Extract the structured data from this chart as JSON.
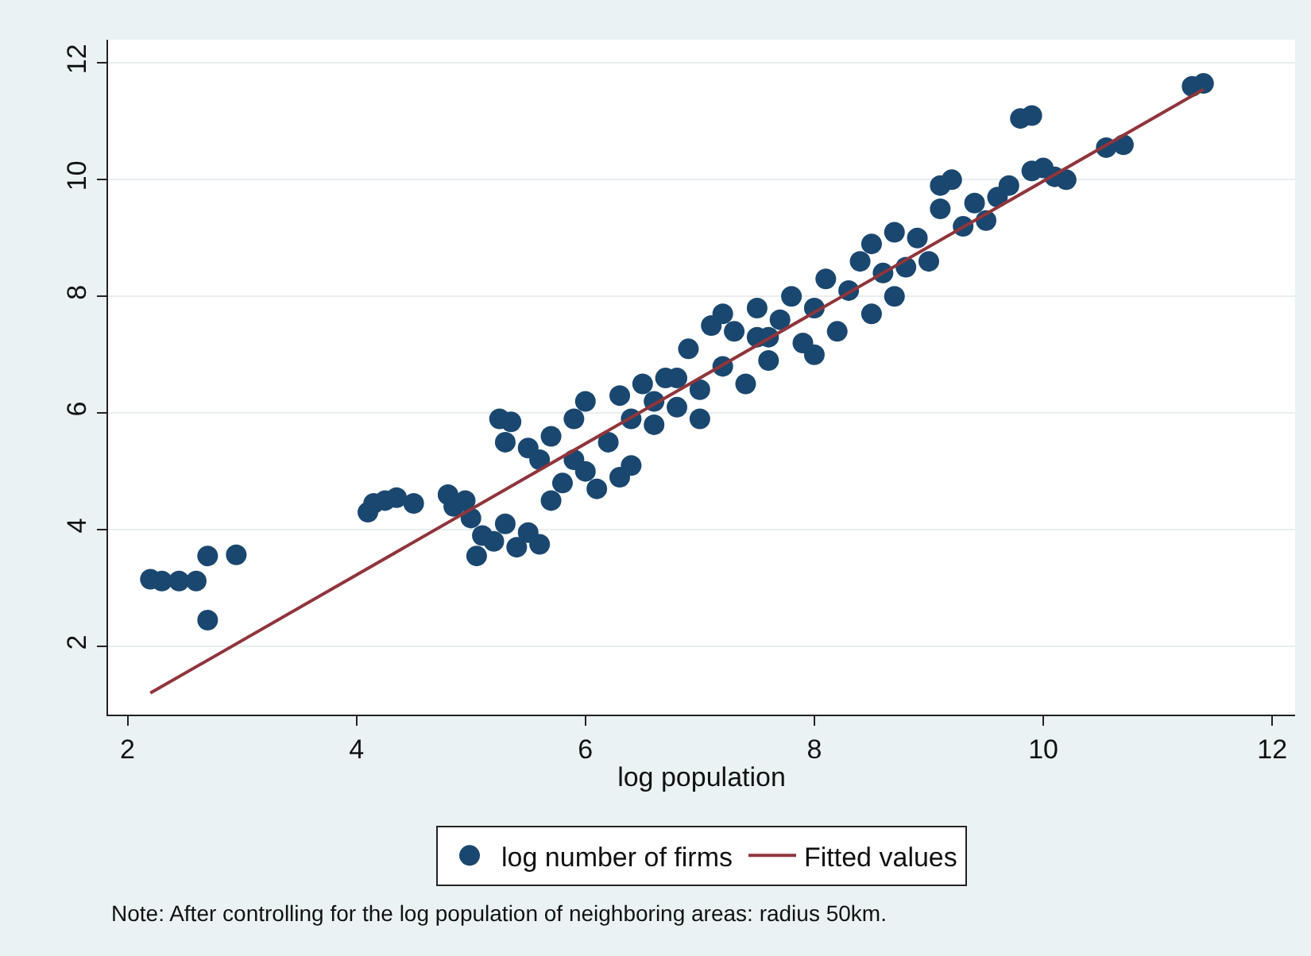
{
  "chart_data": {
    "type": "scatter",
    "xlabel": "log population",
    "xlim": [
      1.83,
      12.2
    ],
    "xticks": [
      2,
      4,
      6,
      8,
      10,
      12
    ],
    "ylim": [
      0.83,
      12.4
    ],
    "yticks": [
      2,
      4,
      6,
      8,
      10,
      12
    ],
    "grid": "y",
    "legend": "bottom",
    "marker": "circle",
    "annotations": [
      "Note: After controlling for the log population of neighboring areas: radius 50km."
    ],
    "series": [
      {
        "name": "log number of firms",
        "color": "#1a476f",
        "x": [
          2.2,
          2.3,
          2.45,
          2.6,
          2.7,
          2.7,
          2.95,
          4.1,
          4.15,
          4.25,
          4.35,
          4.5,
          4.8,
          4.85,
          4.95,
          5.0,
          5.1,
          5.05,
          5.2,
          5.3,
          5.4,
          5.5,
          5.6,
          5.25,
          5.35,
          5.3,
          5.5,
          5.6,
          5.7,
          5.7,
          5.8,
          5.9,
          5.9,
          6.0,
          6.0,
          6.1,
          6.2,
          6.3,
          6.4,
          6.4,
          6.5,
          6.6,
          6.7,
          6.8,
          6.9,
          7.0,
          7.0,
          7.1,
          7.2,
          7.3,
          7.4,
          7.5,
          7.5,
          7.6,
          7.7,
          7.8,
          7.9,
          8.0,
          8.1,
          8.2,
          8.3,
          8.4,
          8.5,
          8.6,
          8.7,
          8.7,
          8.8,
          8.9,
          9.0,
          9.1,
          9.1,
          9.2,
          9.3,
          9.4,
          9.5,
          9.6,
          9.7,
          9.8,
          9.9,
          9.9,
          10.0,
          10.1,
          10.2,
          10.55,
          10.7,
          11.3,
          11.4,
          6.3,
          7.2,
          8.0,
          8.5,
          6.8,
          7.6,
          6.6
        ],
        "values": [
          3.15,
          3.12,
          3.12,
          3.12,
          3.55,
          2.45,
          3.57,
          4.3,
          4.45,
          4.5,
          4.55,
          4.45,
          4.6,
          4.4,
          4.5,
          4.2,
          3.9,
          3.55,
          3.8,
          4.1,
          3.7,
          3.95,
          3.75,
          5.9,
          5.85,
          5.5,
          5.4,
          5.2,
          5.6,
          4.5,
          4.8,
          5.2,
          5.9,
          6.2,
          5.0,
          4.7,
          5.5,
          6.3,
          5.9,
          5.1,
          6.5,
          5.8,
          6.6,
          6.1,
          7.1,
          6.4,
          5.9,
          7.5,
          6.8,
          7.4,
          6.5,
          7.3,
          7.8,
          6.9,
          7.6,
          8.0,
          7.2,
          7.8,
          8.3,
          7.4,
          8.1,
          8.6,
          7.7,
          8.4,
          9.1,
          8.0,
          8.5,
          9.0,
          8.6,
          9.5,
          9.9,
          10.0,
          9.2,
          9.6,
          9.3,
          9.7,
          9.9,
          11.05,
          11.1,
          10.15,
          10.2,
          10.05,
          10.0,
          10.55,
          10.6,
          11.6,
          11.65,
          4.9,
          7.7,
          7.0,
          8.9,
          6.6,
          7.3,
          6.2
        ]
      },
      {
        "name": "Fitted values",
        "type": "line",
        "color": "#90353b",
        "marker": "none",
        "x": [
          2.2,
          11.4
        ],
        "values": [
          1.2,
          11.55
        ]
      }
    ]
  }
}
